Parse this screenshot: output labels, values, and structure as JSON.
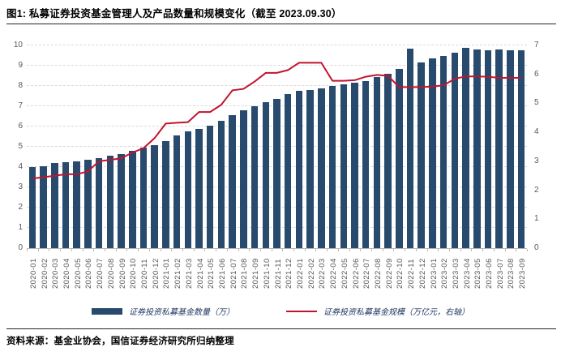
{
  "figure": {
    "title": "图1: 私募证券投资基金管理人及产品数量和规模变化（截至 2023.09.30）",
    "source_note": "资料来源：基金业协会，国信证券经济研究所归纳整理"
  },
  "chart_data": {
    "type": "combo",
    "title": "私募证券投资基金管理人及产品数量和规模变化",
    "categories": [
      "2020-01",
      "2020-02",
      "2020-03",
      "2020-04",
      "2020-05",
      "2020-06",
      "2020-07",
      "2020-08",
      "2020-09",
      "2020-10",
      "2020-11",
      "2020-12",
      "2021-01",
      "2021-02",
      "2021-03",
      "2021-04",
      "2021-05",
      "2021-06",
      "2021-07",
      "2021-08",
      "2021-09",
      "2021-10",
      "2021-11",
      "2021-12",
      "2022-01",
      "2022-02",
      "2022-03",
      "2022-04",
      "2022-05",
      "2022-06",
      "2022-07",
      "2022-08",
      "2022-09",
      "2022-10",
      "2022-11",
      "2022-12",
      "2023-01",
      "2023-02",
      "2023-03",
      "2023-04",
      "2023-05",
      "2023-06",
      "2023-07",
      "2023-08",
      "2023-09"
    ],
    "series": [
      {
        "name": "证券投资私募基金数量（万）",
        "chart": "bar",
        "axis": "left",
        "color": "#274A6D",
        "values": [
          4.0,
          4.05,
          4.2,
          4.25,
          4.3,
          4.35,
          4.45,
          4.55,
          4.65,
          4.8,
          4.95,
          5.1,
          5.3,
          5.55,
          5.75,
          5.9,
          6.05,
          6.3,
          6.55,
          6.8,
          7.0,
          7.2,
          7.35,
          7.6,
          7.75,
          7.8,
          7.9,
          8.0,
          8.1,
          8.15,
          8.25,
          8.45,
          8.6,
          8.85,
          9.85,
          9.15,
          9.35,
          9.5,
          9.65,
          9.9,
          9.8,
          9.75,
          9.8,
          9.75,
          9.75
        ]
      },
      {
        "name": "证券投资私募基金规模（万亿元，右轴）",
        "chart": "line",
        "axis": "right",
        "color": "#C1152D",
        "values": [
          2.4,
          2.45,
          2.5,
          2.55,
          2.55,
          2.65,
          3.0,
          3.05,
          3.1,
          3.3,
          3.45,
          3.8,
          4.3,
          4.33,
          4.35,
          4.7,
          4.7,
          4.95,
          5.45,
          5.5,
          5.75,
          6.05,
          6.05,
          6.15,
          6.4,
          6.4,
          6.4,
          5.78,
          5.78,
          5.8,
          5.92,
          5.98,
          5.95,
          5.56,
          5.56,
          5.56,
          5.58,
          5.62,
          5.85,
          5.93,
          5.93,
          5.92,
          5.88,
          5.88,
          5.88
        ]
      }
    ],
    "left_axis": {
      "min": 0,
      "max": 10,
      "step": 1
    },
    "right_axis": {
      "min": 0,
      "max": 7,
      "step": 1
    },
    "grid": "horizontal-dashed",
    "legend_position": "bottom"
  }
}
